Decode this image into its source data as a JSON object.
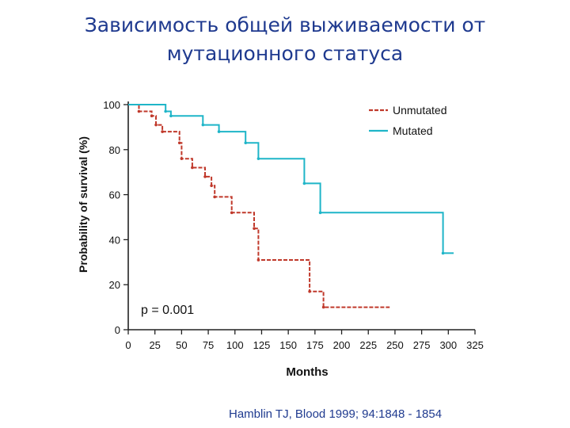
{
  "slide": {
    "title_line1": "Зависимость общей выживаемости от",
    "title_line2": "мутационного статуса",
    "citation": "Hamblin TJ, Blood 1999; 94:1848 - 1854"
  },
  "chart_data": {
    "type": "line",
    "title": "",
    "xlabel": "Months",
    "ylabel": "Probability of survival (%)",
    "xlim": [
      0,
      325
    ],
    "ylim": [
      0,
      100
    ],
    "x_ticks": [
      "0",
      "25",
      "50",
      "75",
      "100",
      "125",
      "150",
      "175",
      "200",
      "225",
      "250",
      "275",
      "300",
      "325"
    ],
    "y_ticks": [
      "0",
      "20",
      "40",
      "60",
      "80",
      "100"
    ],
    "legend_position": "top-right",
    "grid": false,
    "annotation": "p = 0.001",
    "step": true,
    "series": [
      {
        "name": "Unmutated",
        "color": "#c0392b",
        "dash": true,
        "points": [
          [
            0,
            100
          ],
          [
            10,
            100
          ],
          [
            10,
            97
          ],
          [
            22,
            97
          ],
          [
            22,
            95
          ],
          [
            26,
            95
          ],
          [
            26,
            91
          ],
          [
            32,
            91
          ],
          [
            32,
            88
          ],
          [
            48,
            88
          ],
          [
            48,
            83
          ],
          [
            50,
            83
          ],
          [
            50,
            76
          ],
          [
            60,
            76
          ],
          [
            60,
            72
          ],
          [
            72,
            72
          ],
          [
            72,
            68
          ],
          [
            78,
            68
          ],
          [
            78,
            64
          ],
          [
            81,
            64
          ],
          [
            81,
            59
          ],
          [
            97,
            59
          ],
          [
            97,
            52
          ],
          [
            118,
            52
          ],
          [
            118,
            45
          ],
          [
            122,
            45
          ],
          [
            122,
            31
          ],
          [
            170,
            31
          ],
          [
            170,
            17
          ],
          [
            183,
            17
          ],
          [
            183,
            10
          ],
          [
            245,
            10
          ]
        ]
      },
      {
        "name": "Mutated",
        "color": "#1fb5c8",
        "dash": false,
        "points": [
          [
            0,
            100
          ],
          [
            35,
            100
          ],
          [
            35,
            97
          ],
          [
            40,
            97
          ],
          [
            40,
            95
          ],
          [
            70,
            95
          ],
          [
            70,
            91
          ],
          [
            85,
            91
          ],
          [
            85,
            88
          ],
          [
            110,
            88
          ],
          [
            110,
            83
          ],
          [
            122,
            83
          ],
          [
            122,
            76
          ],
          [
            165,
            76
          ],
          [
            165,
            65
          ],
          [
            180,
            65
          ],
          [
            180,
            52
          ],
          [
            295,
            52
          ],
          [
            295,
            34
          ],
          [
            305,
            34
          ]
        ]
      }
    ]
  }
}
